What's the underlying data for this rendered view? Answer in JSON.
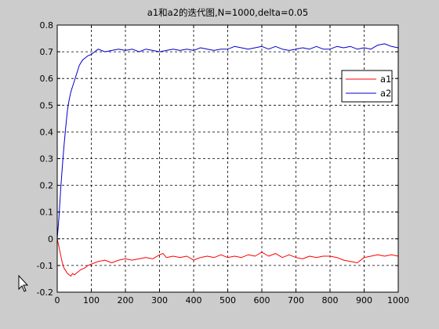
{
  "window": {
    "background": "#cccccc"
  },
  "chart_data": {
    "type": "line",
    "title": "a1和a2的迭代图,N=1000,delta=0.05",
    "xlabel": "",
    "ylabel": "",
    "xlim": [
      0,
      1000
    ],
    "ylim": [
      -0.2,
      0.8
    ],
    "xticks": [
      0,
      100,
      200,
      300,
      400,
      500,
      600,
      700,
      800,
      900,
      1000
    ],
    "yticks": [
      -0.2,
      -0.1,
      0,
      0.1,
      0.2,
      0.3,
      0.4,
      0.5,
      0.6,
      0.7,
      0.8
    ],
    "xtick_labels": [
      "0",
      "100",
      "200",
      "300",
      "400",
      "500",
      "600",
      "700",
      "800",
      "900",
      "1000"
    ],
    "ytick_labels": [
      "-0.2",
      "-0.1",
      "0",
      "0.1",
      "0.2",
      "0.3",
      "0.4",
      "0.5",
      "0.6",
      "0.7",
      "0.8"
    ],
    "grid": true,
    "grid_style": "dashed",
    "legend_position": "right",
    "series": [
      {
        "name": "a1",
        "color": "#ff0000",
        "x": [
          0,
          5,
          10,
          15,
          20,
          25,
          30,
          35,
          40,
          45,
          50,
          60,
          70,
          80,
          90,
          100,
          110,
          120,
          140,
          160,
          180,
          200,
          220,
          240,
          260,
          280,
          300,
          310,
          320,
          340,
          360,
          380,
          400,
          420,
          440,
          460,
          480,
          500,
          520,
          540,
          560,
          580,
          600,
          620,
          640,
          660,
          680,
          700,
          720,
          740,
          760,
          780,
          800,
          820,
          840,
          860,
          880,
          900,
          920,
          940,
          960,
          980,
          1000
        ],
        "y": [
          0,
          -0.03,
          -0.06,
          -0.09,
          -0.11,
          -0.12,
          -0.13,
          -0.135,
          -0.14,
          -0.13,
          -0.135,
          -0.125,
          -0.115,
          -0.11,
          -0.1,
          -0.095,
          -0.09,
          -0.085,
          -0.08,
          -0.09,
          -0.08,
          -0.075,
          -0.08,
          -0.075,
          -0.07,
          -0.075,
          -0.06,
          -0.055,
          -0.07,
          -0.065,
          -0.07,
          -0.065,
          -0.08,
          -0.07,
          -0.065,
          -0.07,
          -0.06,
          -0.07,
          -0.065,
          -0.07,
          -0.06,
          -0.065,
          -0.05,
          -0.065,
          -0.055,
          -0.07,
          -0.06,
          -0.07,
          -0.075,
          -0.065,
          -0.07,
          -0.065,
          -0.065,
          -0.07,
          -0.08,
          -0.085,
          -0.09,
          -0.07,
          -0.065,
          -0.06,
          -0.065,
          -0.06,
          -0.065
        ]
      },
      {
        "name": "a2",
        "color": "#0000cc",
        "x": [
          0,
          5,
          10,
          15,
          20,
          25,
          30,
          35,
          40,
          45,
          50,
          55,
          60,
          65,
          70,
          75,
          80,
          85,
          90,
          100,
          110,
          120,
          140,
          160,
          180,
          200,
          220,
          240,
          260,
          280,
          300,
          320,
          340,
          360,
          380,
          400,
          420,
          440,
          460,
          480,
          500,
          520,
          540,
          560,
          580,
          600,
          620,
          640,
          660,
          680,
          700,
          720,
          740,
          760,
          780,
          800,
          820,
          840,
          860,
          880,
          900,
          920,
          940,
          960,
          980,
          1000
        ],
        "y": [
          0,
          0.08,
          0.18,
          0.27,
          0.35,
          0.42,
          0.48,
          0.52,
          0.55,
          0.57,
          0.59,
          0.61,
          0.63,
          0.65,
          0.66,
          0.67,
          0.675,
          0.68,
          0.685,
          0.69,
          0.7,
          0.71,
          0.7,
          0.705,
          0.71,
          0.705,
          0.71,
          0.7,
          0.71,
          0.705,
          0.7,
          0.705,
          0.71,
          0.705,
          0.71,
          0.705,
          0.715,
          0.71,
          0.705,
          0.71,
          0.71,
          0.72,
          0.715,
          0.71,
          0.715,
          0.72,
          0.71,
          0.72,
          0.71,
          0.705,
          0.71,
          0.715,
          0.71,
          0.72,
          0.71,
          0.71,
          0.72,
          0.715,
          0.72,
          0.71,
          0.715,
          0.71,
          0.725,
          0.73,
          0.72,
          0.715
        ]
      }
    ]
  }
}
